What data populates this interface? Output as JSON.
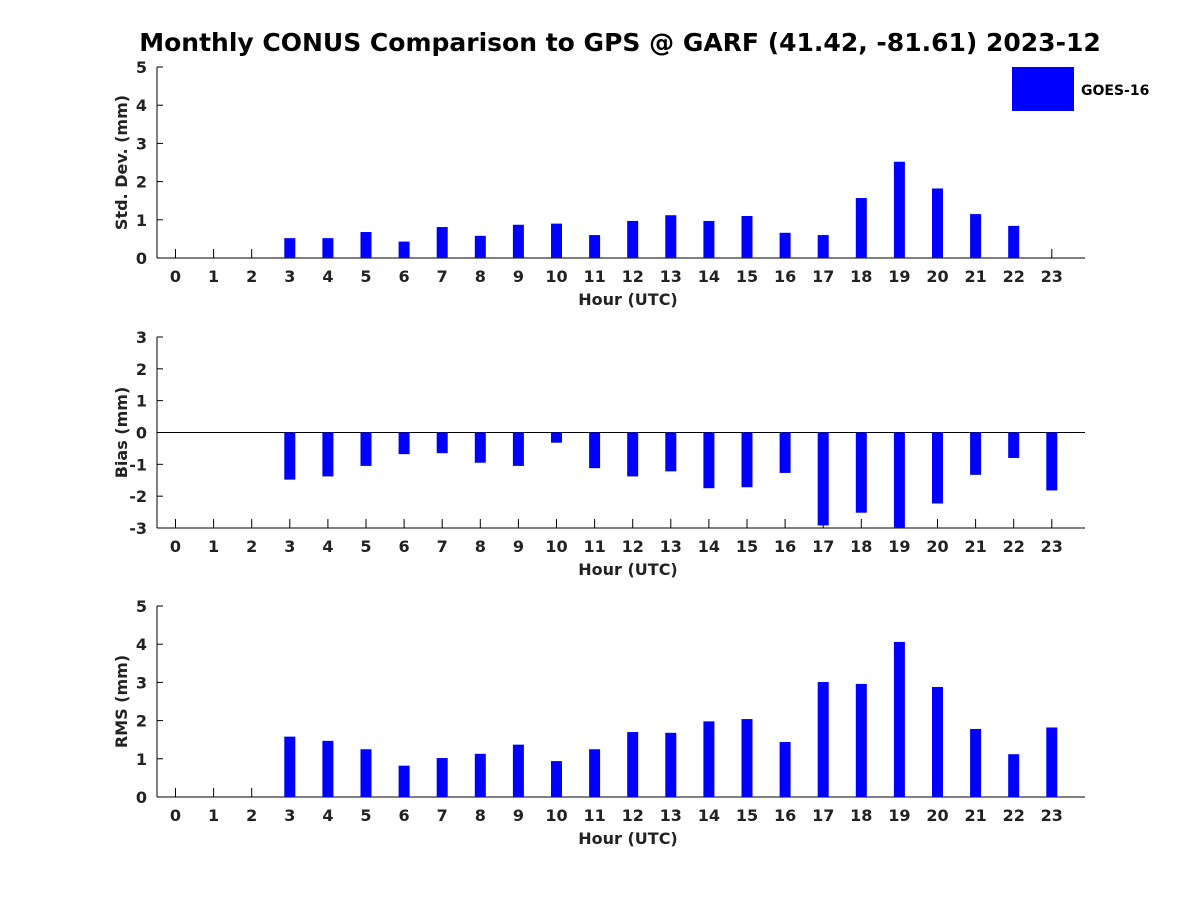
{
  "title": "Monthly CONUS Comparison to GPS @ GARF (41.42, -81.61) 2023-12",
  "legend": {
    "label": "GOES-16",
    "color": "#0000FF",
    "placement": "top-right"
  },
  "chart_data": [
    {
      "type": "bar",
      "xlabel": "Hour (UTC)",
      "ylabel": "Std. Dev. (mm)",
      "ylim": [
        0,
        5
      ],
      "yticks": [
        0,
        1,
        2,
        3,
        4,
        5
      ],
      "categories": [
        0,
        1,
        2,
        3,
        4,
        5,
        6,
        7,
        8,
        9,
        10,
        11,
        12,
        13,
        14,
        15,
        16,
        17,
        18,
        19,
        20,
        21,
        22,
        23
      ],
      "series": [
        {
          "name": "GOES-16",
          "color": "#0000FF",
          "values": [
            null,
            null,
            null,
            0.52,
            0.52,
            0.68,
            0.43,
            0.81,
            0.58,
            0.87,
            0.9,
            0.6,
            0.97,
            1.12,
            0.97,
            1.1,
            0.66,
            0.6,
            1.57,
            2.52,
            1.82,
            1.15,
            0.84,
            null
          ]
        }
      ]
    },
    {
      "type": "bar",
      "xlabel": "Hour (UTC)",
      "ylabel": "Bias (mm)",
      "ylim": [
        -3,
        3
      ],
      "yticks": [
        -3,
        -2,
        -1,
        0,
        1,
        2,
        3
      ],
      "zero_line": true,
      "categories": [
        0,
        1,
        2,
        3,
        4,
        5,
        6,
        7,
        8,
        9,
        10,
        11,
        12,
        13,
        14,
        15,
        16,
        17,
        18,
        19,
        20,
        21,
        22,
        23
      ],
      "series": [
        {
          "name": "GOES-16",
          "color": "#0000FF",
          "values": [
            null,
            null,
            null,
            -1.48,
            -1.38,
            -1.05,
            -0.68,
            -0.65,
            -0.95,
            -1.05,
            -0.32,
            -1.12,
            -1.38,
            -1.22,
            -1.75,
            -1.72,
            -1.27,
            -2.92,
            -2.52,
            -3.0,
            -2.23,
            -1.33,
            -0.8,
            -1.82
          ]
        }
      ]
    },
    {
      "type": "bar",
      "xlabel": "Hour (UTC)",
      "ylabel": "RMS (mm)",
      "ylim": [
        0,
        5
      ],
      "yticks": [
        0,
        1,
        2,
        3,
        4,
        5
      ],
      "categories": [
        0,
        1,
        2,
        3,
        4,
        5,
        6,
        7,
        8,
        9,
        10,
        11,
        12,
        13,
        14,
        15,
        16,
        17,
        18,
        19,
        20,
        21,
        22,
        23
      ],
      "series": [
        {
          "name": "GOES-16",
          "color": "#0000FF",
          "values": [
            null,
            null,
            null,
            1.58,
            1.47,
            1.25,
            0.82,
            1.02,
            1.13,
            1.37,
            0.94,
            1.25,
            1.7,
            1.68,
            1.98,
            2.04,
            1.44,
            3.01,
            2.96,
            4.06,
            2.88,
            1.78,
            1.12,
            1.82
          ]
        }
      ]
    }
  ]
}
